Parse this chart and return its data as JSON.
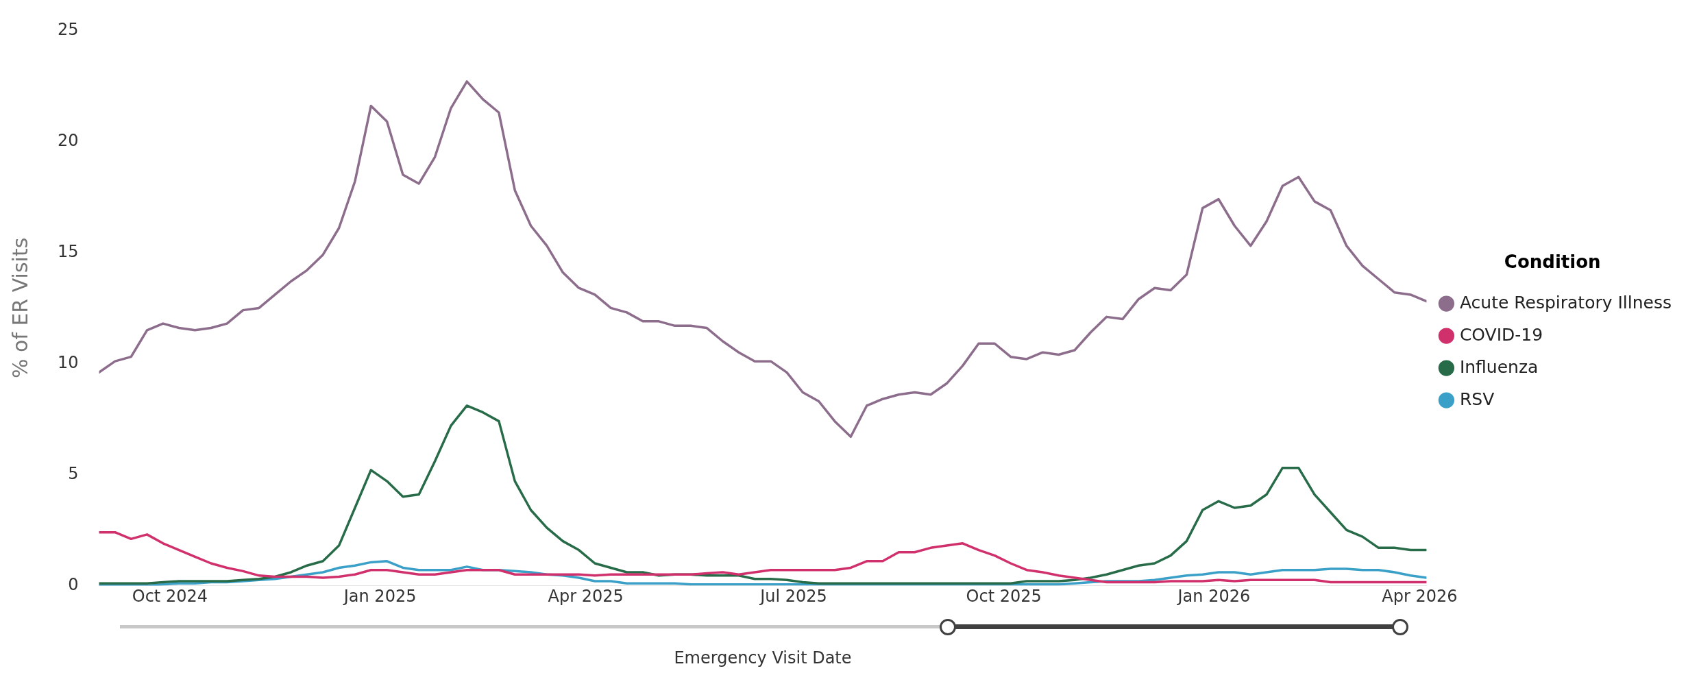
{
  "chart_data": {
    "type": "line",
    "xlabel": "Emergency Visit Date",
    "ylabel": "% of ER Visits",
    "legend_title": "Condition",
    "legend": "right",
    "grid": false,
    "marker": "none",
    "line_style": "solid",
    "xlim": [
      "2024-08-31",
      "2026-04-04"
    ],
    "ylim": [
      0,
      25
    ],
    "yticks": [
      0,
      5,
      10,
      15,
      20,
      25
    ],
    "xticks": [
      {
        "value": "2024-10-01",
        "label": "Oct 2024"
      },
      {
        "value": "2025-01-01",
        "label": "Jan 2025"
      },
      {
        "value": "2025-04-01",
        "label": "Apr 2025"
      },
      {
        "value": "2025-07-01",
        "label": "Jul 2025"
      },
      {
        "value": "2025-10-01",
        "label": "Oct 2025"
      },
      {
        "value": "2026-01-01",
        "label": "Jan 2026"
      },
      {
        "value": "2026-04-01",
        "label": "Apr 2026"
      }
    ],
    "x": [
      "2024-08-31",
      "2024-09-07",
      "2024-09-14",
      "2024-09-21",
      "2024-09-28",
      "2024-10-05",
      "2024-10-12",
      "2024-10-19",
      "2024-10-26",
      "2024-11-02",
      "2024-11-09",
      "2024-11-16",
      "2024-11-23",
      "2024-11-30",
      "2024-12-07",
      "2024-12-14",
      "2024-12-21",
      "2024-12-28",
      "2025-01-04",
      "2025-01-11",
      "2025-01-18",
      "2025-01-25",
      "2025-02-01",
      "2025-02-08",
      "2025-02-15",
      "2025-02-22",
      "2025-03-01",
      "2025-03-08",
      "2025-03-15",
      "2025-03-22",
      "2025-03-29",
      "2025-04-05",
      "2025-04-12",
      "2025-04-19",
      "2025-04-26",
      "2025-05-03",
      "2025-05-10",
      "2025-05-17",
      "2025-05-24",
      "2025-05-31",
      "2025-06-07",
      "2025-06-14",
      "2025-06-21",
      "2025-06-28",
      "2025-07-05",
      "2025-07-12",
      "2025-07-19",
      "2025-07-26",
      "2025-08-02",
      "2025-08-09",
      "2025-08-16",
      "2025-08-23",
      "2025-08-30",
      "2025-09-06",
      "2025-09-13",
      "2025-09-20",
      "2025-09-27",
      "2025-10-04",
      "2025-10-11",
      "2025-10-18",
      "2025-10-25",
      "2025-11-01",
      "2025-11-08",
      "2025-11-15",
      "2025-11-22",
      "2025-11-29",
      "2025-12-06",
      "2025-12-13",
      "2025-12-20",
      "2025-12-27",
      "2026-01-03",
      "2026-01-10",
      "2026-01-17",
      "2026-01-24",
      "2026-01-31",
      "2026-02-07",
      "2026-02-14",
      "2026-02-21",
      "2026-02-28",
      "2026-03-07",
      "2026-03-14",
      "2026-03-21",
      "2026-03-28",
      "2026-04-04"
    ],
    "series": [
      {
        "name": "Acute Respiratory Illness",
        "color": "#8c6d8c",
        "values": [
          9.6,
          10.1,
          10.3,
          11.5,
          11.8,
          11.6,
          11.5,
          11.6,
          11.8,
          12.4,
          12.5,
          13.1,
          13.7,
          14.2,
          14.9,
          16.1,
          18.2,
          21.6,
          20.9,
          18.5,
          18.1,
          19.3,
          21.5,
          22.7,
          21.9,
          21.3,
          17.8,
          16.2,
          15.3,
          14.1,
          13.4,
          13.1,
          12.5,
          12.3,
          11.9,
          11.9,
          11.7,
          11.7,
          11.6,
          11.0,
          10.5,
          10.1,
          10.1,
          9.6,
          8.7,
          8.3,
          7.4,
          6.7,
          8.1,
          8.4,
          8.6,
          8.7,
          8.6,
          9.1,
          9.9,
          10.9,
          10.9,
          10.3,
          10.2,
          10.5,
          10.4,
          10.6,
          11.4,
          12.1,
          12.0,
          12.9,
          13.4,
          13.3,
          14.0,
          17.0,
          17.4,
          16.2,
          15.3,
          16.4,
          18.0,
          18.4,
          17.3,
          16.9,
          15.3,
          14.4,
          13.8,
          13.2,
          13.1,
          12.8
        ]
      },
      {
        "name": "COVID-19",
        "color": "#d0306b",
        "values": [
          2.4,
          2.4,
          2.1,
          2.3,
          1.9,
          1.6,
          1.3,
          1.0,
          0.8,
          0.65,
          0.45,
          0.4,
          0.4,
          0.4,
          0.35,
          0.4,
          0.5,
          0.7,
          0.7,
          0.6,
          0.5,
          0.5,
          0.6,
          0.7,
          0.7,
          0.7,
          0.5,
          0.5,
          0.5,
          0.5,
          0.5,
          0.45,
          0.5,
          0.5,
          0.5,
          0.5,
          0.5,
          0.5,
          0.55,
          0.6,
          0.5,
          0.6,
          0.7,
          0.7,
          0.7,
          0.7,
          0.7,
          0.8,
          1.1,
          1.1,
          1.5,
          1.5,
          1.7,
          1.8,
          1.9,
          1.6,
          1.35,
          1.0,
          0.7,
          0.6,
          0.45,
          0.35,
          0.25,
          0.15,
          0.15,
          0.15,
          0.15,
          0.2,
          0.2,
          0.2,
          0.25,
          0.2,
          0.25,
          0.25,
          0.25,
          0.25,
          0.25,
          0.15,
          0.15,
          0.15,
          0.15,
          0.15,
          0.15,
          0.15
        ]
      },
      {
        "name": "Influenza",
        "color": "#276b48",
        "values": [
          0.1,
          0.1,
          0.1,
          0.1,
          0.15,
          0.2,
          0.2,
          0.2,
          0.2,
          0.25,
          0.3,
          0.4,
          0.6,
          0.9,
          1.1,
          1.8,
          3.5,
          5.2,
          4.7,
          4.0,
          4.1,
          5.6,
          7.2,
          8.1,
          7.8,
          7.4,
          4.7,
          3.4,
          2.6,
          2.0,
          1.6,
          1.0,
          0.8,
          0.6,
          0.6,
          0.45,
          0.5,
          0.5,
          0.45,
          0.45,
          0.45,
          0.3,
          0.3,
          0.25,
          0.15,
          0.1,
          0.1,
          0.1,
          0.1,
          0.1,
          0.1,
          0.1,
          0.1,
          0.1,
          0.1,
          0.1,
          0.1,
          0.1,
          0.2,
          0.2,
          0.2,
          0.25,
          0.35,
          0.5,
          0.7,
          0.9,
          1.0,
          1.35,
          2.0,
          3.4,
          3.8,
          3.5,
          3.6,
          4.1,
          5.3,
          5.3,
          4.1,
          3.3,
          2.5,
          2.2,
          1.7,
          1.7,
          1.6,
          1.6
        ]
      },
      {
        "name": "RSV",
        "color": "#3ba0c8",
        "values": [
          0,
          0,
          0,
          0,
          0.05,
          0.1,
          0.1,
          0.15,
          0.15,
          0.2,
          0.25,
          0.3,
          0.4,
          0.5,
          0.6,
          0.8,
          0.9,
          1.05,
          1.1,
          0.8,
          0.7,
          0.7,
          0.7,
          0.85,
          0.7,
          0.7,
          0.65,
          0.6,
          0.5,
          0.45,
          0.35,
          0.2,
          0.2,
          0.1,
          0.1,
          0.1,
          0.1,
          0.05,
          0.05,
          0.05,
          0.05,
          0.05,
          0.05,
          0.05,
          0.05,
          0.05,
          0.05,
          0.05,
          0.05,
          0.05,
          0.05,
          0.05,
          0.05,
          0.05,
          0.05,
          0.05,
          0.05,
          0.05,
          0.05,
          0.05,
          0.05,
          0.1,
          0.15,
          0.2,
          0.2,
          0.2,
          0.25,
          0.35,
          0.45,
          0.5,
          0.6,
          0.6,
          0.5,
          0.6,
          0.7,
          0.7,
          0.7,
          0.75,
          0.75,
          0.7,
          0.7,
          0.6,
          0.45,
          0.35
        ]
      }
    ]
  }
}
